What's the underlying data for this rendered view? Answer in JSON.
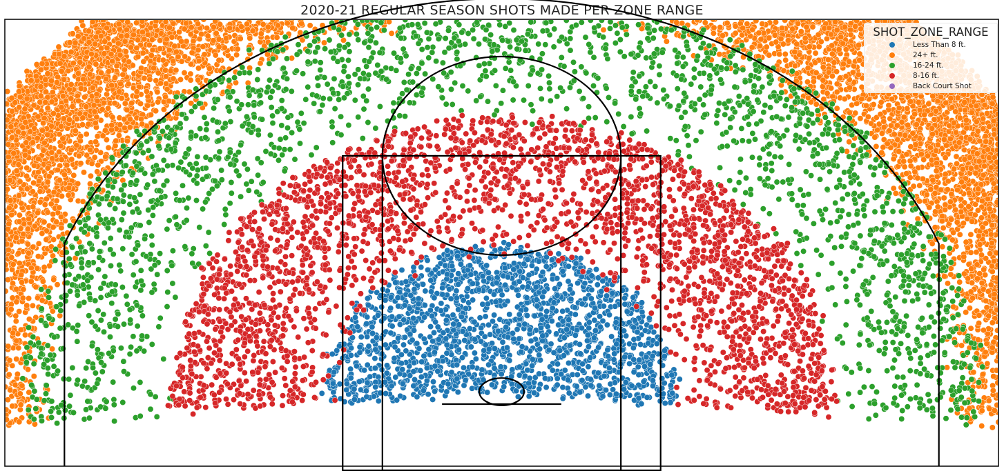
{
  "chart_data": {
    "type": "scatter",
    "title": "2020-21 REGULAR SEASON SHOTS MADE PER ZONE RANGE",
    "xlabel": "",
    "ylabel": "",
    "xlim": [
      -250,
      250
    ],
    "ylim": [
      -45,
      225
    ],
    "grid": false,
    "axes_visible": false,
    "marker": "circle",
    "marker_edge_color": "#ffffff",
    "legend": {
      "title": "SHOT_ZONE_RANGE",
      "placement": "top-right"
    },
    "series": [
      {
        "name": "Less Than 8 ft.",
        "color": "#1f77b4",
        "dist_range": [
          0,
          8.8
        ],
        "count": 1800
      },
      {
        "name": "24+ ft.",
        "color": "#ff7f0e",
        "dist_range": [
          22.5,
          30.5
        ],
        "count": 5200
      },
      {
        "name": "16-24 ft.",
        "color": "#2ca02c",
        "dist_range": [
          16,
          24
        ],
        "count": 2200
      },
      {
        "name": "8-16 ft.",
        "color": "#d62728",
        "dist_range": [
          8,
          16.6
        ],
        "count": 2800
      },
      {
        "name": "Back Court Shot",
        "color": "#9467bd",
        "dist_range": [],
        "count": 0
      }
    ],
    "court": {
      "hoop": {
        "center": [
          0,
          0
        ],
        "radius": 7.5
      },
      "backboard": {
        "x": [
          -30,
          30
        ],
        "y": -7.5
      },
      "outer_box": {
        "x": [
          -80,
          80
        ],
        "y": [
          -47.5,
          142.5
        ]
      },
      "inner_box": {
        "x": [
          -60,
          60
        ],
        "y": [
          -47.5,
          142.5
        ]
      },
      "free_throw_circle": {
        "center": [
          0,
          142.5
        ],
        "radius": 60
      },
      "corner_three_x": 220,
      "three_point_radius": 237.5
    }
  }
}
